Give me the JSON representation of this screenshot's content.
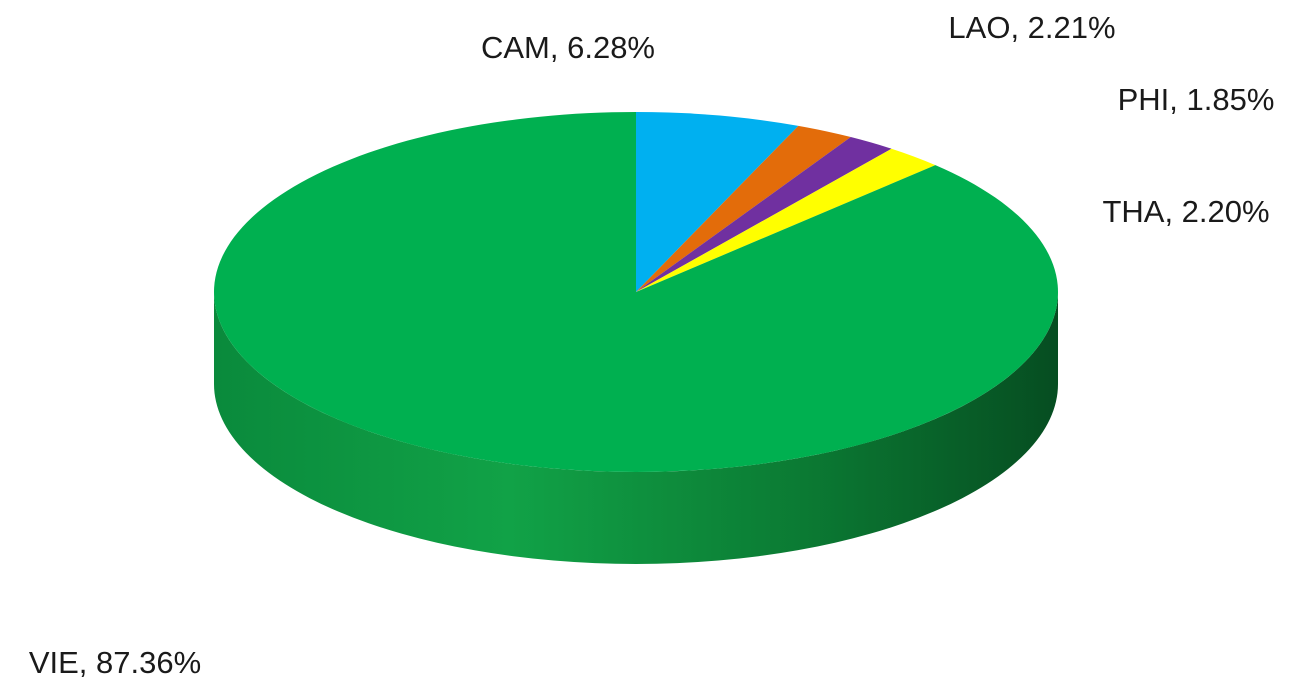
{
  "chart_data": {
    "type": "pie",
    "style": "3d",
    "title": "",
    "slices": [
      {
        "name": "CAM",
        "value": 6.28,
        "label": "CAM, 6.28%",
        "color": "#00b0f0"
      },
      {
        "name": "LAO",
        "value": 2.21,
        "label": "LAO, 2.21%",
        "color": "#e36c0a"
      },
      {
        "name": "PHI",
        "value": 1.85,
        "label": "PHI, 1.85%",
        "color": "#7030a0"
      },
      {
        "name": "THA",
        "value": 2.2,
        "label": "THA, 2.20%",
        "color": "#ffff00"
      },
      {
        "name": "VIE",
        "value": 87.36,
        "label": "VIE, 87.36%",
        "color": "#00b050"
      }
    ],
    "legend": "none"
  }
}
